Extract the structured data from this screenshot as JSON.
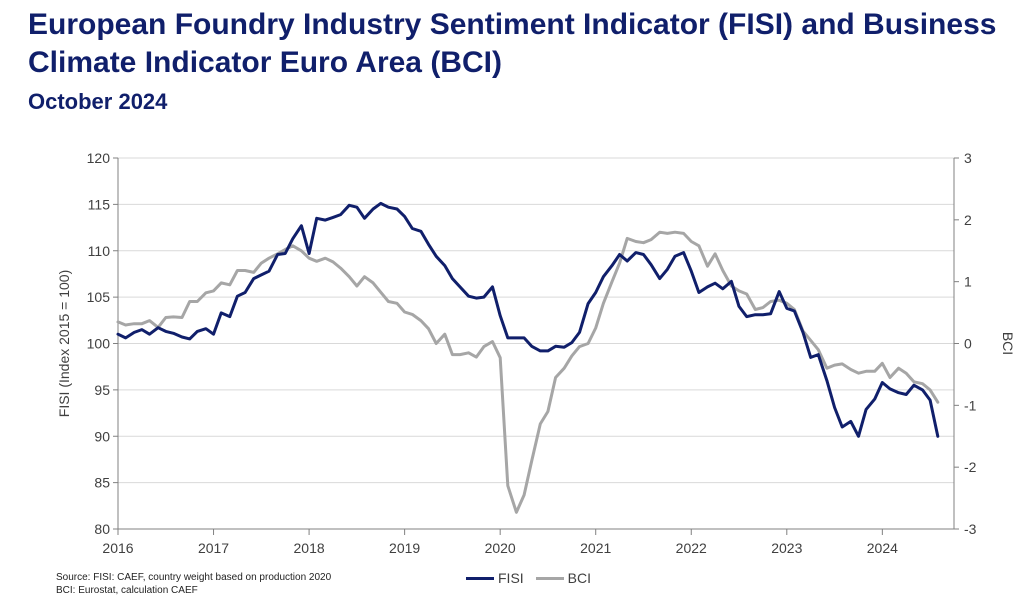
{
  "header": {
    "title": "European Foundry Industry Sentiment Indicator (FISI) and Business Climate Indicator Euro Area (BCI)",
    "subtitle": "October 2024"
  },
  "source": {
    "line1": "Source: FISI: CAEF, country weight based on production 2020",
    "line2": "BCI: Eurostat, calculation CAEF"
  },
  "legend": [
    {
      "label": "FISI",
      "color": "#101f6b"
    },
    {
      "label": "BCI",
      "color": "#a6a6a6"
    }
  ],
  "chart_data": {
    "type": "line",
    "xlim": [
      2016,
      2024.75
    ],
    "x_ticks": [
      "2016",
      "2017",
      "2018",
      "2019",
      "2020",
      "2021",
      "2022",
      "2023",
      "2024"
    ],
    "ylabel": "FISI (Index 2015 = 100)",
    "ylim": [
      80,
      120
    ],
    "y_ticks": [
      "120",
      "115",
      "110",
      "105",
      "100",
      "95",
      "90",
      "85",
      "80"
    ],
    "y2label": "BCI",
    "y2lim": [
      -3,
      3
    ],
    "y2_ticks": [
      "3",
      "2",
      "1",
      "0",
      "-1",
      "-2",
      "-3"
    ],
    "grid": "horizontal",
    "legend_position": "bottom",
    "series": [
      {
        "name": "FISI",
        "axis": "left",
        "color": "#101f6b",
        "points": [
          [
            2016.0,
            101.0
          ],
          [
            2016.08,
            100.6
          ],
          [
            2016.17,
            101.2
          ],
          [
            2016.25,
            101.5
          ],
          [
            2016.33,
            101.0
          ],
          [
            2016.42,
            101.7
          ],
          [
            2016.5,
            101.3
          ],
          [
            2016.58,
            101.1
          ],
          [
            2016.67,
            100.7
          ],
          [
            2016.75,
            100.5
          ],
          [
            2016.83,
            101.3
          ],
          [
            2016.92,
            101.6
          ],
          [
            2017.0,
            101.0
          ],
          [
            2017.08,
            103.3
          ],
          [
            2017.17,
            102.9
          ],
          [
            2017.25,
            105.1
          ],
          [
            2017.33,
            105.5
          ],
          [
            2017.42,
            107.0
          ],
          [
            2017.5,
            107.4
          ],
          [
            2017.58,
            107.8
          ],
          [
            2017.67,
            109.6
          ],
          [
            2017.75,
            109.7
          ],
          [
            2017.83,
            111.3
          ],
          [
            2017.92,
            112.7
          ],
          [
            2018.0,
            109.7
          ],
          [
            2018.08,
            113.5
          ],
          [
            2018.17,
            113.3
          ],
          [
            2018.25,
            113.6
          ],
          [
            2018.33,
            113.9
          ],
          [
            2018.42,
            114.9
          ],
          [
            2018.5,
            114.7
          ],
          [
            2018.58,
            113.5
          ],
          [
            2018.67,
            114.5
          ],
          [
            2018.75,
            115.1
          ],
          [
            2018.83,
            114.7
          ],
          [
            2018.92,
            114.5
          ],
          [
            2019.0,
            113.7
          ],
          [
            2019.08,
            112.4
          ],
          [
            2019.17,
            112.1
          ],
          [
            2019.25,
            110.7
          ],
          [
            2019.33,
            109.4
          ],
          [
            2019.42,
            108.4
          ],
          [
            2019.5,
            107.0
          ],
          [
            2019.58,
            106.1
          ],
          [
            2019.67,
            105.1
          ],
          [
            2019.75,
            104.9
          ],
          [
            2019.83,
            105.0
          ],
          [
            2019.92,
            106.1
          ],
          [
            2020.0,
            103.0
          ],
          [
            2020.08,
            100.6
          ],
          [
            2020.17,
            100.6
          ],
          [
            2020.25,
            100.6
          ],
          [
            2020.33,
            99.7
          ],
          [
            2020.42,
            99.2
          ],
          [
            2020.5,
            99.2
          ],
          [
            2020.58,
            99.7
          ],
          [
            2020.67,
            99.6
          ],
          [
            2020.75,
            100.1
          ],
          [
            2020.83,
            101.2
          ],
          [
            2020.92,
            104.3
          ],
          [
            2021.0,
            105.5
          ],
          [
            2021.08,
            107.2
          ],
          [
            2021.17,
            108.4
          ],
          [
            2021.25,
            109.6
          ],
          [
            2021.33,
            108.9
          ],
          [
            2021.42,
            109.8
          ],
          [
            2021.5,
            109.6
          ],
          [
            2021.58,
            108.5
          ],
          [
            2021.67,
            107.0
          ],
          [
            2021.75,
            108.0
          ],
          [
            2021.83,
            109.4
          ],
          [
            2021.92,
            109.8
          ],
          [
            2022.0,
            107.8
          ],
          [
            2022.08,
            105.5
          ],
          [
            2022.17,
            106.1
          ],
          [
            2022.25,
            106.5
          ],
          [
            2022.33,
            105.9
          ],
          [
            2022.42,
            106.7
          ],
          [
            2022.5,
            104.0
          ],
          [
            2022.58,
            102.9
          ],
          [
            2022.67,
            103.1
          ],
          [
            2022.75,
            103.1
          ],
          [
            2022.83,
            103.2
          ],
          [
            2022.92,
            105.6
          ],
          [
            2023.0,
            103.8
          ],
          [
            2023.08,
            103.5
          ],
          [
            2023.17,
            101.2
          ],
          [
            2023.25,
            98.5
          ],
          [
            2023.33,
            98.8
          ],
          [
            2023.42,
            96.0
          ],
          [
            2023.5,
            93.1
          ],
          [
            2023.58,
            91.0
          ],
          [
            2023.67,
            91.6
          ],
          [
            2023.75,
            90.0
          ],
          [
            2023.83,
            92.9
          ],
          [
            2023.92,
            94.0
          ],
          [
            2024.0,
            95.8
          ],
          [
            2024.08,
            95.1
          ],
          [
            2024.17,
            94.7
          ],
          [
            2024.25,
            94.5
          ],
          [
            2024.33,
            95.5
          ],
          [
            2024.42,
            95.0
          ],
          [
            2024.5,
            93.9
          ],
          [
            2024.58,
            90.0
          ]
        ]
      },
      {
        "name": "BCI",
        "axis": "right",
        "color": "#a6a6a6",
        "points": [
          [
            2016.0,
            0.35
          ],
          [
            2016.08,
            0.3
          ],
          [
            2016.17,
            0.32
          ],
          [
            2016.25,
            0.32
          ],
          [
            2016.33,
            0.37
          ],
          [
            2016.42,
            0.26
          ],
          [
            2016.5,
            0.42
          ],
          [
            2016.58,
            0.43
          ],
          [
            2016.67,
            0.42
          ],
          [
            2016.75,
            0.68
          ],
          [
            2016.83,
            0.68
          ],
          [
            2016.92,
            0.82
          ],
          [
            2017.0,
            0.85
          ],
          [
            2017.08,
            0.98
          ],
          [
            2017.17,
            0.95
          ],
          [
            2017.25,
            1.18
          ],
          [
            2017.33,
            1.18
          ],
          [
            2017.42,
            1.15
          ],
          [
            2017.5,
            1.3
          ],
          [
            2017.58,
            1.38
          ],
          [
            2017.67,
            1.45
          ],
          [
            2017.75,
            1.52
          ],
          [
            2017.83,
            1.58
          ],
          [
            2017.92,
            1.5
          ],
          [
            2018.0,
            1.38
          ],
          [
            2018.08,
            1.33
          ],
          [
            2018.17,
            1.38
          ],
          [
            2018.25,
            1.32
          ],
          [
            2018.33,
            1.22
          ],
          [
            2018.42,
            1.08
          ],
          [
            2018.5,
            0.93
          ],
          [
            2018.58,
            1.08
          ],
          [
            2018.67,
            0.98
          ],
          [
            2018.75,
            0.83
          ],
          [
            2018.83,
            0.68
          ],
          [
            2018.92,
            0.65
          ],
          [
            2019.0,
            0.51
          ],
          [
            2019.08,
            0.47
          ],
          [
            2019.17,
            0.37
          ],
          [
            2019.25,
            0.24
          ],
          [
            2019.33,
            0.0
          ],
          [
            2019.42,
            0.15
          ],
          [
            2019.5,
            -0.18
          ],
          [
            2019.58,
            -0.18
          ],
          [
            2019.67,
            -0.15
          ],
          [
            2019.75,
            -0.22
          ],
          [
            2019.83,
            -0.05
          ],
          [
            2019.92,
            0.03
          ],
          [
            2020.0,
            -0.23
          ],
          [
            2020.08,
            -2.3
          ],
          [
            2020.17,
            -2.73
          ],
          [
            2020.25,
            -2.45
          ],
          [
            2020.33,
            -1.9
          ],
          [
            2020.42,
            -1.3
          ],
          [
            2020.5,
            -1.1
          ],
          [
            2020.58,
            -0.55
          ],
          [
            2020.67,
            -0.4
          ],
          [
            2020.75,
            -0.2
          ],
          [
            2020.83,
            -0.05
          ],
          [
            2020.92,
            0.0
          ],
          [
            2021.0,
            0.25
          ],
          [
            2021.08,
            0.65
          ],
          [
            2021.17,
            1.0
          ],
          [
            2021.25,
            1.3
          ],
          [
            2021.33,
            1.7
          ],
          [
            2021.42,
            1.65
          ],
          [
            2021.5,
            1.63
          ],
          [
            2021.58,
            1.68
          ],
          [
            2021.67,
            1.8
          ],
          [
            2021.75,
            1.78
          ],
          [
            2021.83,
            1.8
          ],
          [
            2021.92,
            1.78
          ],
          [
            2022.0,
            1.65
          ],
          [
            2022.08,
            1.58
          ],
          [
            2022.17,
            1.25
          ],
          [
            2022.25,
            1.45
          ],
          [
            2022.33,
            1.18
          ],
          [
            2022.42,
            0.93
          ],
          [
            2022.5,
            0.85
          ],
          [
            2022.58,
            0.8
          ],
          [
            2022.67,
            0.55
          ],
          [
            2022.75,
            0.58
          ],
          [
            2022.83,
            0.68
          ],
          [
            2022.92,
            0.7
          ],
          [
            2023.0,
            0.65
          ],
          [
            2023.08,
            0.55
          ],
          [
            2023.17,
            0.2
          ],
          [
            2023.25,
            0.05
          ],
          [
            2023.33,
            -0.1
          ],
          [
            2023.42,
            -0.4
          ],
          [
            2023.5,
            -0.35
          ],
          [
            2023.58,
            -0.33
          ],
          [
            2023.67,
            -0.42
          ],
          [
            2023.75,
            -0.48
          ],
          [
            2023.83,
            -0.45
          ],
          [
            2023.92,
            -0.45
          ],
          [
            2024.0,
            -0.32
          ],
          [
            2024.08,
            -0.55
          ],
          [
            2024.17,
            -0.4
          ],
          [
            2024.25,
            -0.48
          ],
          [
            2024.33,
            -0.62
          ],
          [
            2024.42,
            -0.65
          ],
          [
            2024.5,
            -0.75
          ],
          [
            2024.58,
            -0.95
          ]
        ]
      }
    ]
  }
}
